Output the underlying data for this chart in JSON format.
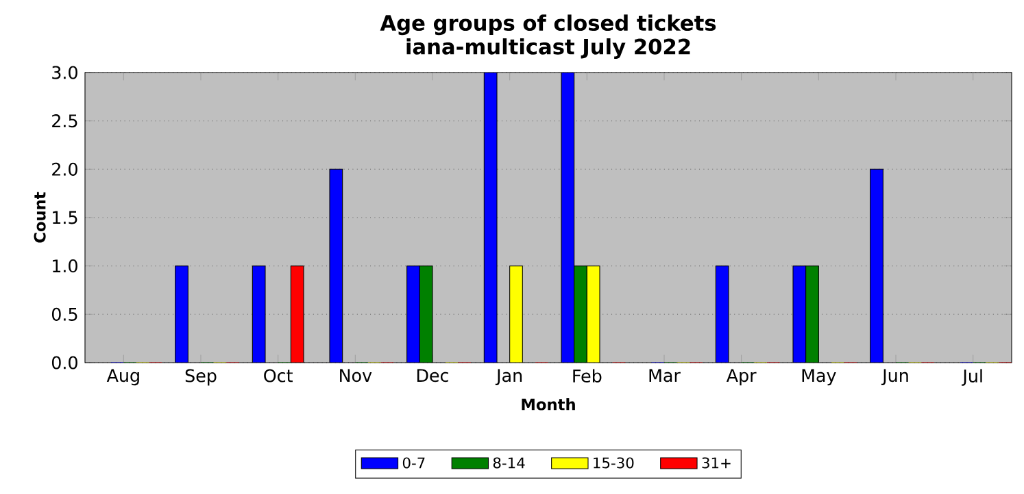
{
  "chart_data": {
    "type": "bar",
    "title": "Age groups of closed tickets",
    "subtitle": "iana-multicast July 2022",
    "xlabel": "Month",
    "ylabel": "Count",
    "categories": [
      "Aug",
      "Sep",
      "Oct",
      "Nov",
      "Dec",
      "Jan",
      "Feb",
      "Mar",
      "Apr",
      "May",
      "Jun",
      "Jul"
    ],
    "series": [
      {
        "name": "0-7",
        "color": "#0000ff",
        "values": [
          0,
          1,
          1,
          2,
          1,
          3,
          3,
          0,
          1,
          1,
          2,
          0
        ]
      },
      {
        "name": "8-14",
        "color": "#008000",
        "values": [
          0,
          0,
          0,
          0,
          1,
          0,
          1,
          0,
          0,
          1,
          0,
          0
        ]
      },
      {
        "name": "15-30",
        "color": "#ffff00",
        "values": [
          0,
          0,
          0,
          0,
          0,
          1,
          1,
          0,
          0,
          0,
          0,
          0
        ]
      },
      {
        "name": "31+",
        "color": "#ff0000",
        "values": [
          0,
          0,
          1,
          0,
          0,
          0,
          0,
          0,
          0,
          0,
          0,
          0
        ]
      }
    ],
    "ylim": [
      0,
      3
    ],
    "yticks": [
      {
        "value": 0,
        "label": "0.0"
      },
      0.5,
      {
        "value": 1,
        "label": "1.0"
      },
      1.5,
      {
        "value": 2,
        "label": "2.0"
      },
      2.5,
      {
        "value": 3,
        "label": "3.0"
      }
    ],
    "grid": "y",
    "legend": "bottom"
  }
}
